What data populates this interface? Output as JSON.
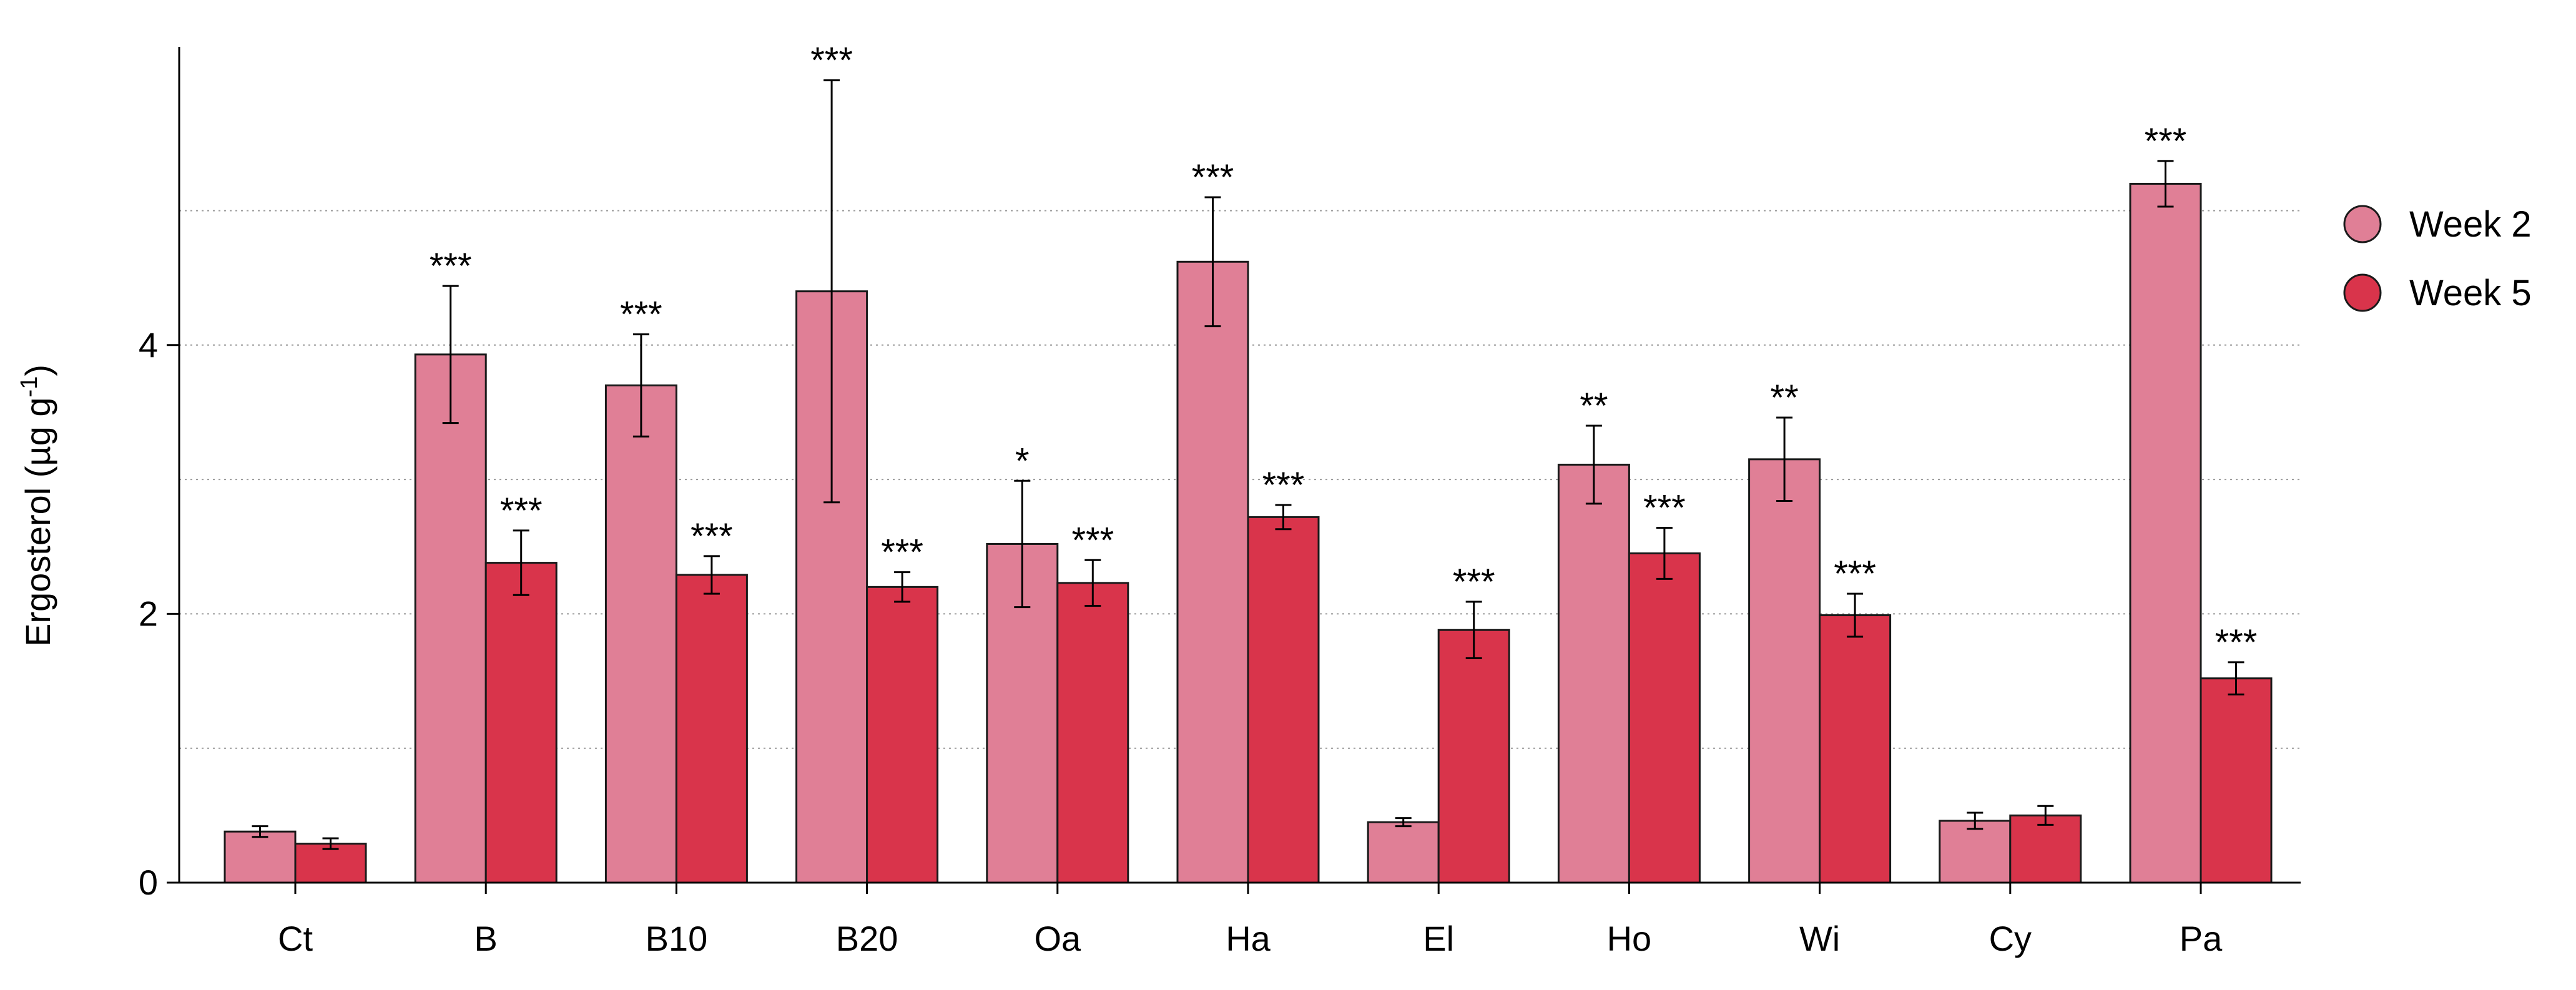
{
  "chart_data": {
    "type": "bar",
    "title": "",
    "xlabel": "",
    "ylabel": "Ergosterol (µg g",
    "ylabel_sup": "-1",
    "ylabel_suffix": ")",
    "ylim": [
      0,
      6.3
    ],
    "yticks": [
      0,
      2,
      4
    ],
    "yticklabels": [
      "0",
      "2",
      "4"
    ],
    "gridlines": [
      1,
      2,
      3,
      4,
      5
    ],
    "categories": [
      "Ct",
      "B",
      "B10",
      "B20",
      "Oa",
      "Ha",
      "El",
      "Ho",
      "Wi",
      "Cy",
      "Pa"
    ],
    "legend_position": "right",
    "series": [
      {
        "name": "Week 2",
        "color": "#e07f96",
        "values": [
          0.38,
          3.93,
          3.7,
          4.4,
          2.52,
          4.62,
          0.45,
          3.11,
          3.15,
          0.46,
          5.2
        ],
        "errors": [
          0.04,
          0.51,
          0.38,
          1.57,
          0.47,
          0.48,
          0.03,
          0.29,
          0.31,
          0.06,
          0.17
        ],
        "significance": [
          "",
          "***",
          "***",
          "***",
          "*",
          "***",
          "",
          "**",
          "**",
          "",
          "***"
        ]
      },
      {
        "name": "Week 5",
        "color": "#d9344b",
        "values": [
          0.29,
          2.38,
          2.29,
          2.2,
          2.23,
          2.72,
          1.88,
          2.45,
          1.99,
          0.5,
          1.52
        ],
        "errors": [
          0.04,
          0.24,
          0.14,
          0.11,
          0.17,
          0.09,
          0.21,
          0.19,
          0.16,
          0.07,
          0.12
        ],
        "significance": [
          "",
          "***",
          "***",
          "***",
          "***",
          "***",
          "***",
          "***",
          "***",
          "",
          "***"
        ]
      }
    ]
  }
}
